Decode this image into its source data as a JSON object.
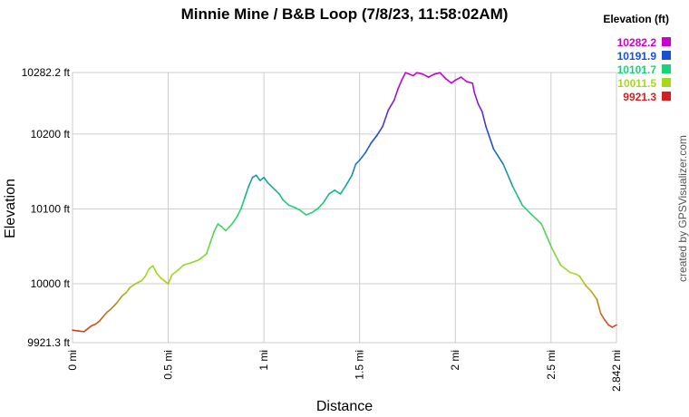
{
  "chart_data": {
    "type": "line",
    "title": "Minnie Mine / B&B Loop (7/8/23, 11:58:02AM)",
    "xlabel": "Distance",
    "ylabel": "Elevation",
    "xlim": [
      0,
      2.842
    ],
    "ylim": [
      9921.3,
      10282.2
    ],
    "x_ticks": [
      {
        "value": 0,
        "label": "0 mi"
      },
      {
        "value": 0.5,
        "label": "0.5 mi"
      },
      {
        "value": 1,
        "label": "1 mi"
      },
      {
        "value": 1.5,
        "label": "1.5 mi"
      },
      {
        "value": 2,
        "label": "2 mi"
      },
      {
        "value": 2.5,
        "label": "2.5 mi"
      },
      {
        "value": 2.842,
        "label": "2.842 mi"
      }
    ],
    "y_ticks": [
      {
        "value": 9921.3,
        "label": "9921.3 ft"
      },
      {
        "value": 10000,
        "label": "10000 ft"
      },
      {
        "value": 10100,
        "label": "10100 ft"
      },
      {
        "value": 10200,
        "label": "10200 ft"
      },
      {
        "value": 10282.2,
        "label": "10282.2 ft"
      }
    ],
    "grid": true,
    "color_scale_legend": {
      "title": "Elevation (ft)",
      "position": "top-right",
      "entries": [
        {
          "label": "10282.2",
          "color": "#cc00cc"
        },
        {
          "label": "10191.9",
          "color": "#1a4fd6"
        },
        {
          "label": "10101.7",
          "color": "#19d27a"
        },
        {
          "label": "10011.5",
          "color": "#a8d81a"
        },
        {
          "label": "9921.3",
          "color": "#d42020"
        }
      ]
    },
    "series": [
      {
        "x": [
          0,
          0.03,
          0.06,
          0.08,
          0.1,
          0.12,
          0.14,
          0.16,
          0.18,
          0.2,
          0.23,
          0.26,
          0.28,
          0.3,
          0.33,
          0.36,
          0.38,
          0.4,
          0.42,
          0.44,
          0.46,
          0.48,
          0.5,
          0.52,
          0.55,
          0.58,
          0.62,
          0.66,
          0.7,
          0.72,
          0.74,
          0.76,
          0.78,
          0.8,
          0.82,
          0.84,
          0.86,
          0.88,
          0.9,
          0.92,
          0.94,
          0.96,
          0.98,
          1.0,
          1.02,
          1.04,
          1.06,
          1.08,
          1.1,
          1.13,
          1.16,
          1.19,
          1.22,
          1.25,
          1.28,
          1.31,
          1.34,
          1.37,
          1.4,
          1.43,
          1.46,
          1.48,
          1.5,
          1.53,
          1.56,
          1.59,
          1.62,
          1.65,
          1.68,
          1.7,
          1.72,
          1.74,
          1.76,
          1.78,
          1.8,
          1.83,
          1.86,
          1.89,
          1.92,
          1.95,
          1.98,
          2.0,
          2.03,
          2.06,
          2.09,
          2.1,
          2.12,
          2.14,
          2.16,
          2.2,
          2.25,
          2.3,
          2.35,
          2.4,
          2.45,
          2.5,
          2.55,
          2.6,
          2.63,
          2.65,
          2.68,
          2.71,
          2.74,
          2.76,
          2.78,
          2.8,
          2.82,
          2.842
        ],
        "y": [
          9938,
          9937,
          9936,
          9940,
          9944,
          9946,
          9950,
          9956,
          9962,
          9966,
          9974,
          9984,
          9988,
          9995,
          10000,
          10004,
          10010,
          10020,
          10024,
          10014,
          10008,
          10004,
          10000,
          10012,
          10018,
          10025,
          10028,
          10032,
          10040,
          10055,
          10070,
          10080,
          10076,
          10071,
          10076,
          10082,
          10090,
          10100,
          10115,
          10130,
          10142,
          10145,
          10138,
          10142,
          10135,
          10130,
          10125,
          10120,
          10112,
          10105,
          10102,
          10098,
          10092,
          10095,
          10100,
          10108,
          10120,
          10125,
          10120,
          10132,
          10145,
          10160,
          10165,
          10175,
          10188,
          10198,
          10210,
          10232,
          10245,
          10260,
          10272,
          10282,
          10280,
          10278,
          10282,
          10280,
          10276,
          10280,
          10282,
          10274,
          10268,
          10272,
          10276,
          10270,
          10268,
          10255,
          10240,
          10230,
          10210,
          10180,
          10160,
          10130,
          10105,
          10092,
          10080,
          10050,
          10025,
          10015,
          10013,
          10010,
          9998,
          9990,
          9979,
          9960,
          9952,
          9945,
          9942,
          9945
        ]
      }
    ]
  },
  "credit": "created by GPSVisualizer.com"
}
